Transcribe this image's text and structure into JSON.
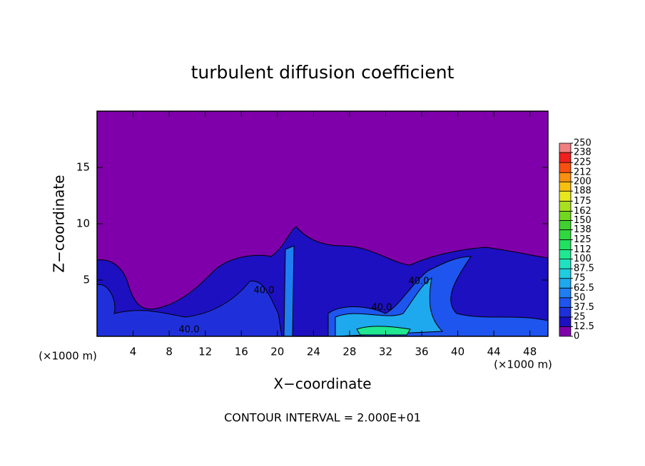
{
  "chart_data": {
    "type": "contour",
    "title": "turbulent diffusion coefficient",
    "xlabel": "X−coordinate",
    "ylabel": "Z−coordinate",
    "x_unit": "(×1000 m)",
    "y_unit": "(×1000 m)",
    "footnote": "CONTOUR INTERVAL = 2.000E+01",
    "xlim": [
      0,
      50
    ],
    "xticks": [
      4,
      8,
      12,
      16,
      20,
      24,
      28,
      32,
      36,
      40,
      44,
      48
    ],
    "ylim": [
      0,
      20
    ],
    "yticks": [
      5,
      10,
      15
    ],
    "background_color": "#7f00aa",
    "contour_labels": [
      "40.0",
      "40.0",
      "40.0",
      "40.0"
    ],
    "colorbar": {
      "levels": [
        0,
        12.5,
        25,
        37.5,
        50,
        62.5,
        75,
        87.5,
        100,
        112,
        125,
        138,
        150,
        162,
        175,
        188,
        200,
        212,
        225,
        238,
        250
      ],
      "colors": [
        "#7f00aa",
        "#1c10c0",
        "#1f30da",
        "#1e55ee",
        "#1e7ef2",
        "#1ea8ee",
        "#20cce0",
        "#20e2c0",
        "#20e890",
        "#22e060",
        "#30d840",
        "#40d030",
        "#70d820",
        "#a8e020",
        "#e8e820",
        "#f8c010",
        "#f89010",
        "#f85010",
        "#f02020",
        "#f08080"
      ]
    }
  }
}
